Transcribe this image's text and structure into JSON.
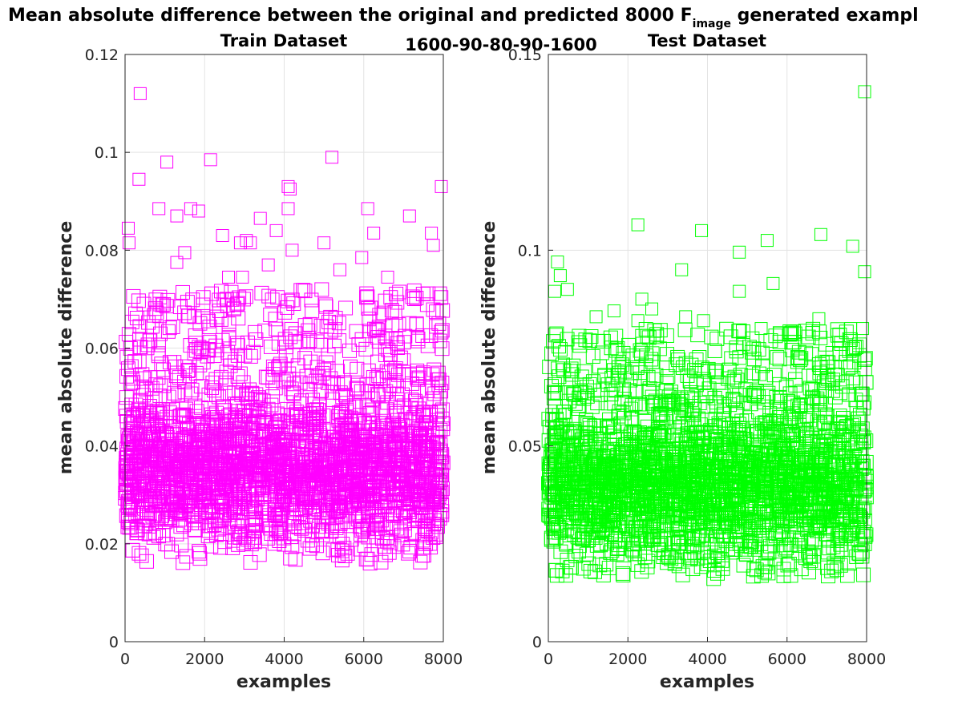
{
  "figure": {
    "suptitle_main": "Mean absolute difference between the original and predicted 8000 F",
    "suptitle_sub": "image",
    "suptitle_tail": " generated exampl",
    "center_label": "1600-90-80-90-1600"
  },
  "chart_data": [
    {
      "type": "scatter",
      "title": "Train Dataset",
      "xlabel": "examples",
      "ylabel": "mean absolute difference",
      "xlim": [
        0,
        8000
      ],
      "ylim": [
        0,
        0.12
      ],
      "xticks": [
        "0",
        "2000",
        "4000",
        "6000",
        "8000"
      ],
      "yticks": [
        "0",
        "0.02",
        "0.04",
        "0.06",
        "0.08",
        "0.1",
        "0.12"
      ],
      "color": "#ff00ff",
      "marker": "square",
      "grid": true,
      "series": [
        {
          "x": [
            380,
            1050,
            2150,
            5200,
            350,
            1850,
            7950,
            4100,
            4150,
            850,
            4100,
            1650,
            6100,
            3400,
            1300,
            2450,
            7150,
            1300,
            3800,
            3050,
            7700,
            6250,
            7750,
            3150,
            5000,
            5950,
            5400,
            80,
            100,
            3600,
            1500,
            2900,
            2950,
            4200,
            2600,
            6600
          ],
          "y": [
            0.112,
            0.098,
            0.0985,
            0.099,
            0.0945,
            0.088,
            0.093,
            0.093,
            0.0925,
            0.0885,
            0.0885,
            0.0885,
            0.0885,
            0.0865,
            0.087,
            0.083,
            0.087,
            0.0775,
            0.084,
            0.082,
            0.0835,
            0.0835,
            0.081,
            0.0815,
            0.0815,
            0.0785,
            0.076,
            0.0845,
            0.0815,
            0.077,
            0.0795,
            0.0815,
            0.0745,
            0.08,
            0.0745,
            0.0745
          ]
        }
      ],
      "dense_band": {
        "count": 8000,
        "typical_range": [
          0.02,
          0.05
        ],
        "upper_scatter": [
          0.05,
          0.072
        ],
        "min": 0.016
      }
    },
    {
      "type": "scatter",
      "title": "Test Dataset",
      "xlabel": "examples",
      "ylabel": "mean absolute difference",
      "xlim": [
        0,
        8000
      ],
      "ylim": [
        0,
        0.15
      ],
      "xticks": [
        "0",
        "2000",
        "4000",
        "6000",
        "8000"
      ],
      "yticks": [
        "0",
        "0.05",
        "0.1",
        "0.15"
      ],
      "color": "#00ff00",
      "marker": "square",
      "grid": true,
      "series": [
        {
          "x": [
            7950,
            2250,
            3850,
            6850,
            5500,
            4800,
            7650,
            5650,
            7950,
            230,
            300,
            160,
            480,
            3350,
            2350,
            2600,
            4800,
            3450,
            1200,
            1650,
            2250,
            3900,
            5350,
            6800,
            7600,
            7900
          ],
          "y": [
            0.1405,
            0.1065,
            0.105,
            0.104,
            0.1025,
            0.0995,
            0.101,
            0.0915,
            0.0945,
            0.097,
            0.0935,
            0.0895,
            0.09,
            0.095,
            0.0875,
            0.085,
            0.0895,
            0.083,
            0.083,
            0.0845,
            0.082,
            0.082,
            0.08,
            0.0825,
            0.08,
            0.08
          ]
        }
      ],
      "dense_band": {
        "count": 8000,
        "typical_range": [
          0.02,
          0.06
        ],
        "upper_scatter": [
          0.06,
          0.08
        ],
        "min": 0.016
      }
    }
  ]
}
